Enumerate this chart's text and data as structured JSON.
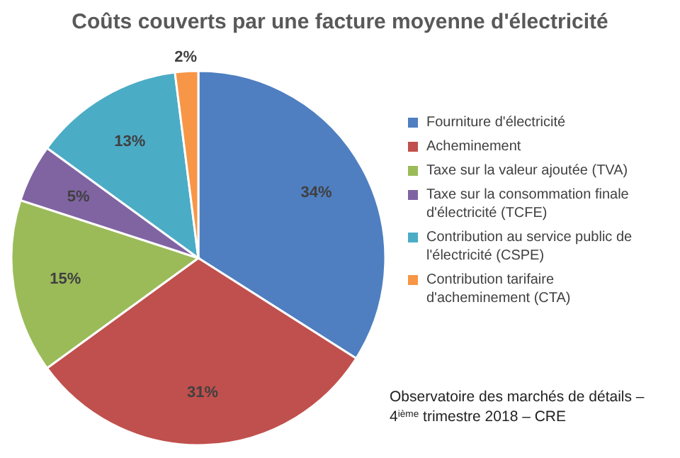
{
  "chart_data": {
    "type": "pie",
    "title": "Coûts couverts par une facture moyenne d'électricité",
    "categories": [
      "Fourniture d'électricité",
      "Acheminement",
      "Taxe sur la valeur ajoutée (TVA)",
      "Taxe sur la consommation finale d'électricité (TCFE)",
      "Contribution au service public de l'électricité (CSPE)",
      "Contribution tarifaire d'acheminement (CTA)"
    ],
    "values": [
      34,
      31,
      15,
      5,
      13,
      2
    ],
    "value_labels": [
      "34%",
      "31%",
      "15%",
      "5%",
      "13%",
      "2%"
    ],
    "colors": [
      "#4f7fc0",
      "#c0504d",
      "#9bbb59",
      "#8064a2",
      "#4bacc6",
      "#f79646"
    ],
    "legend": "right",
    "annotations": [
      "Observatoire des marchés de détails – 4$^{ième}$ trimestre 2018 – CRE"
    ]
  }
}
